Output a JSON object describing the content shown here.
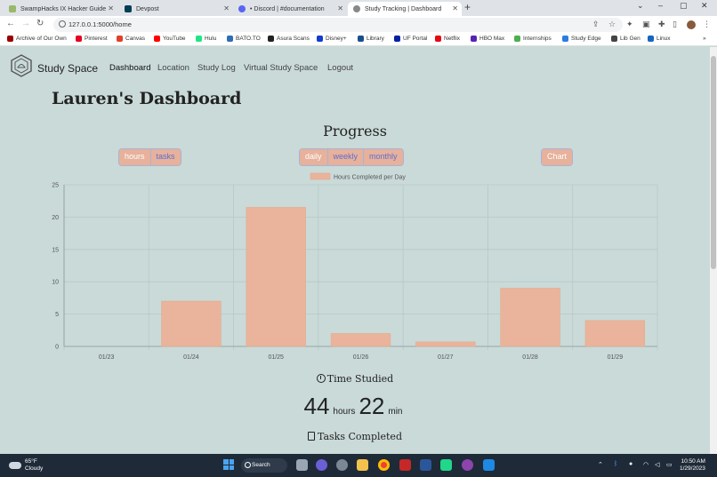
{
  "browser": {
    "tabs": [
      {
        "title": "SwampHacks IX Hacker Guide",
        "color": "#9ab86a"
      },
      {
        "title": "Devpost",
        "color": "#003e54"
      },
      {
        "title": "• Discord | #documentation",
        "color": "#5865f2"
      },
      {
        "title": "Study Tracking | Dashboard",
        "color": "#888888"
      }
    ],
    "url": "127.0.0.1:5000/home",
    "bookmarks": [
      {
        "label": "Archive of Our Own",
        "color": "#990000"
      },
      {
        "label": "Pinterest",
        "color": "#e60023"
      },
      {
        "label": "Canvas",
        "color": "#e13f2b"
      },
      {
        "label": "YouTube",
        "color": "#ff0000"
      },
      {
        "label": "Hulu",
        "color": "#1ce783"
      },
      {
        "label": "BATO.TO",
        "color": "#2f6db5"
      },
      {
        "label": "Asura Scans",
        "color": "#222222"
      },
      {
        "label": "Disney+",
        "color": "#113ccf"
      },
      {
        "label": "Library",
        "color": "#1a4e8a"
      },
      {
        "label": "UF Portal",
        "color": "#0021a5"
      },
      {
        "label": "Netflix",
        "color": "#e50914"
      },
      {
        "label": "HBO Max",
        "color": "#5822b4"
      },
      {
        "label": "Internships",
        "color": "#4caf50"
      },
      {
        "label": "Study Edge",
        "color": "#2a7de1"
      },
      {
        "label": "Lib Gen",
        "color": "#444444"
      },
      {
        "label": "Linux",
        "color": "#1565c0"
      }
    ]
  },
  "nav": {
    "brand": "Study Space",
    "items": [
      "Dashboard",
      "Location",
      "Study Log",
      "Virtual Study Space",
      "Logout"
    ]
  },
  "dashboard": {
    "title": "Lauren's Dashboard",
    "progress_heading": "Progress",
    "metric_buttons": [
      "hours",
      "tasks"
    ],
    "period_buttons": [
      "daily",
      "weekly",
      "monthly"
    ],
    "chart_button": "Chart",
    "time_studied_label": "Time Studied",
    "hours_value": "44",
    "hours_unit": "hours",
    "minutes_value": "22",
    "minutes_unit": "min",
    "tasks_completed_label": "Tasks Completed"
  },
  "colors": {
    "bar": "#e9b49b",
    "bar_stroke": "#e6a98c",
    "page_bg": "#c9dad8"
  },
  "chart_data": {
    "type": "bar",
    "categories": [
      "01/23",
      "01/24",
      "01/25",
      "01/26",
      "01/27",
      "01/28",
      "01/29"
    ],
    "series": [
      {
        "name": "Hours Completed per Day",
        "values": [
          0,
          7,
          21.5,
          2,
          0.7,
          9,
          4
        ]
      }
    ],
    "ylim": [
      0,
      25
    ],
    "yticks": [
      0,
      5,
      10,
      15,
      20,
      25
    ],
    "grid": true,
    "legend": "top"
  },
  "taskbar": {
    "weather_temp": "65°F",
    "weather_desc": "Cloudy",
    "search_label": "Search",
    "time": "10:50 AM",
    "date": "1/29/2023"
  }
}
